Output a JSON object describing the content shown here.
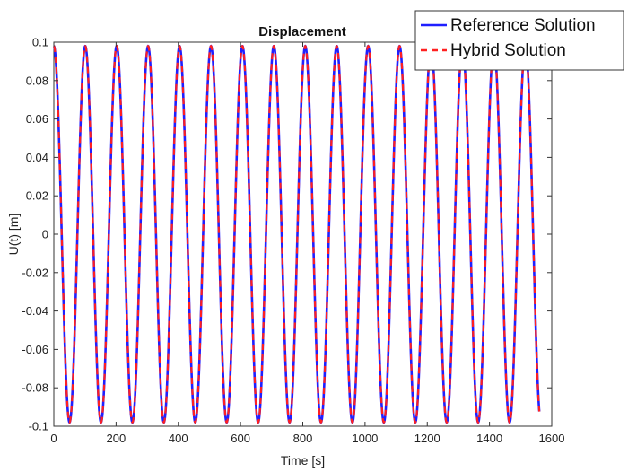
{
  "chart_data": {
    "type": "line",
    "title": "Displacement",
    "xlabel": "Time [s]",
    "ylabel": "U(t) [m]",
    "xlim": [
      0,
      1600
    ],
    "ylim": [
      -0.1,
      0.1
    ],
    "x_ticks": [
      0,
      200,
      400,
      600,
      800,
      1000,
      1200,
      1400,
      1600
    ],
    "y_ticks": [
      -0.1,
      -0.08,
      -0.06,
      -0.04,
      -0.02,
      0,
      0.02,
      0.04,
      0.06,
      0.08,
      0.1
    ],
    "x_tick_labels": [
      "0",
      "200",
      "400",
      "600",
      "800",
      "1000",
      "1200",
      "1400",
      "1600"
    ],
    "y_tick_labels": [
      "-0.1",
      "-0.08",
      "-0.06",
      "-0.04",
      "-0.02",
      "0",
      "0.02",
      "0.04",
      "0.06",
      "0.08",
      "0.1"
    ],
    "grid": false,
    "legend_position": "top-right",
    "series": [
      {
        "name": "Reference Solution",
        "color": "#1f1fff",
        "style": "solid",
        "x_range": [
          0,
          1560
        ],
        "amplitude": 0.098,
        "period": 101,
        "phase": "cosine, starts at maximum at t=0"
      },
      {
        "name": "Hybrid Solution",
        "color": "#ff2020",
        "style": "dashed",
        "x_range": [
          0,
          1560
        ],
        "amplitude": 0.098,
        "period": 101,
        "phase": "cosine, starts at maximum at t=0"
      }
    ]
  }
}
